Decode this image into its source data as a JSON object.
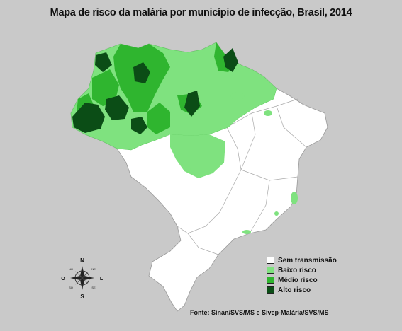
{
  "title": "Mapa de risco da malária por município de infecção, Brasil, 2014",
  "colors": {
    "background": "#c9c9c9",
    "sem_transmissao": "#ffffff",
    "baixo_risco": "#7fe27f",
    "medio_risco": "#2fb52f",
    "alto_risco": "#0b4d16"
  },
  "legend": [
    {
      "label": "Sem transmissão",
      "color": "#ffffff"
    },
    {
      "label": "Baixo risco",
      "color": "#7fe27f"
    },
    {
      "label": "Médio risco",
      "color": "#2fb52f"
    },
    {
      "label": "Alto risco",
      "color": "#0b4d16"
    }
  ],
  "compass": {
    "n": "N",
    "s": "S",
    "l": "L",
    "o": "O",
    "no": "NO",
    "ne": "NE",
    "so": "SO",
    "se": "SE"
  },
  "source": "Fonte: Sinan/SVS/MS e Sivep-Malária/SVS/MS"
}
